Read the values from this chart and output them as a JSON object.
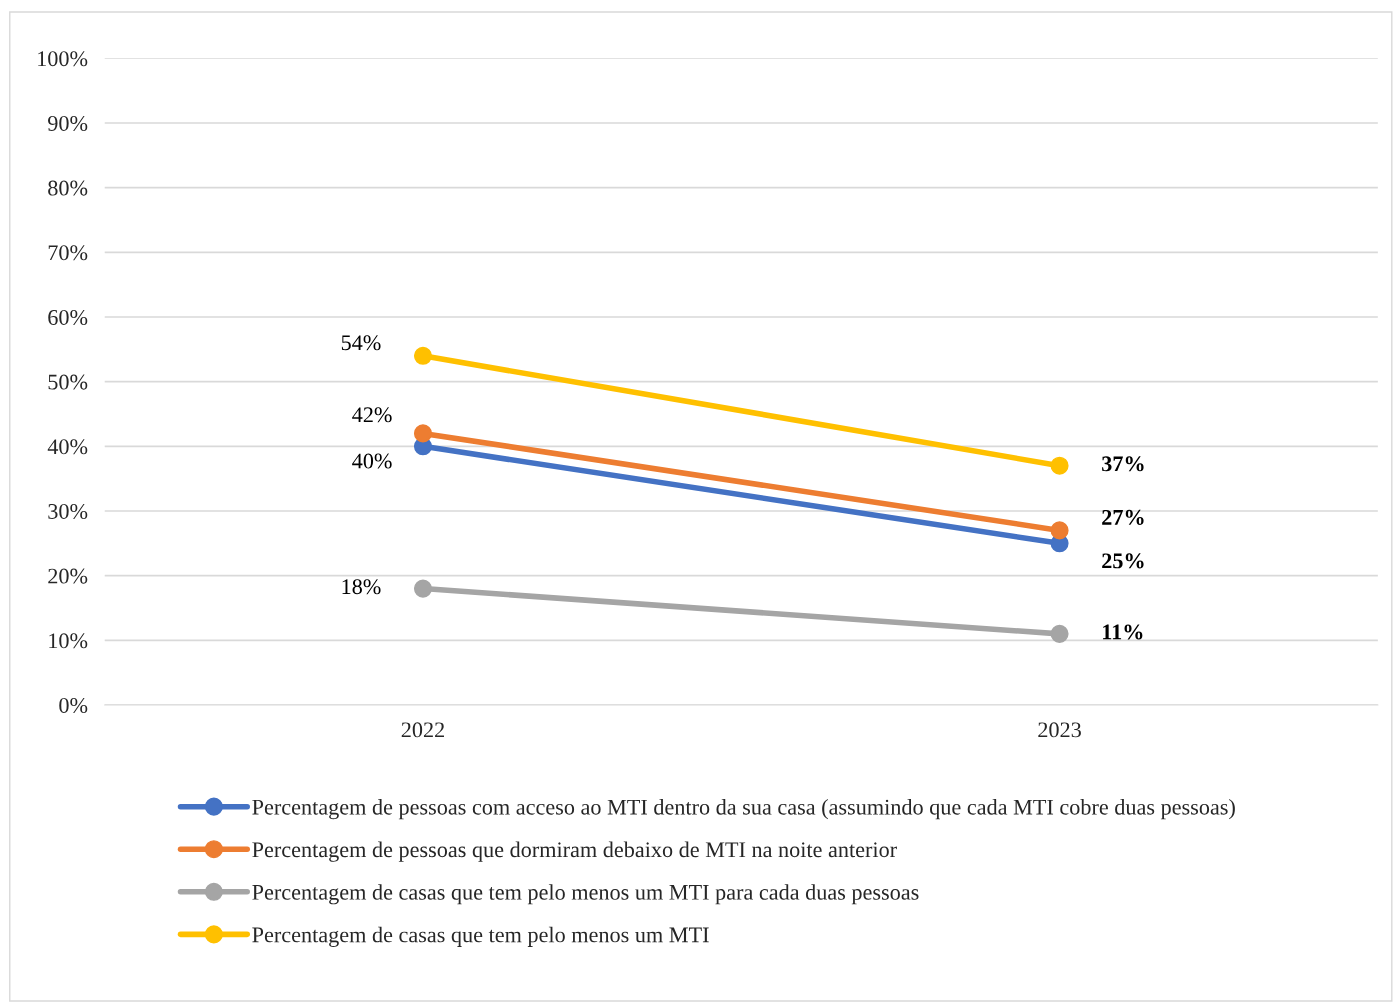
{
  "chart_data": {
    "type": "line",
    "categories": [
      "2022",
      "2023"
    ],
    "series": [
      {
        "name": "Percentagem de pessoas com acceso ao MTI dentro da sua casa (assumindo que cada MTI cobre duas pessoas)",
        "color": "#4472c4",
        "values": [
          40,
          25
        ],
        "value_labels": [
          "40%",
          "25%"
        ]
      },
      {
        "name": "Percentagem de pessoas que dormiram debaixo de MTI na noite anterior",
        "color": "#ed7d31",
        "values": [
          42,
          27
        ],
        "value_labels": [
          "42%",
          "27%"
        ]
      },
      {
        "name": "Percentagem de casas que tem pelo menos um MTI para cada duas pessoas",
        "color": "#a5a5a5",
        "values": [
          18,
          11
        ],
        "value_labels": [
          "18%",
          "11%"
        ]
      },
      {
        "name": "Percentagem de casas que tem pelo menos um MTI",
        "color": "#ffc000",
        "values": [
          54,
          37
        ],
        "value_labels": [
          "54%",
          "37%"
        ]
      }
    ],
    "ylim": [
      0,
      100
    ],
    "yticks": [
      {
        "value": 0,
        "label": "0%"
      },
      {
        "value": 10,
        "label": "10%"
      },
      {
        "value": 20,
        "label": "20%"
      },
      {
        "value": 30,
        "label": "30%"
      },
      {
        "value": 40,
        "label": "40%"
      },
      {
        "value": 50,
        "label": "50%"
      },
      {
        "value": 60,
        "label": "60%"
      },
      {
        "value": 70,
        "label": "70%"
      },
      {
        "value": 80,
        "label": "80%"
      },
      {
        "value": 90,
        "label": "90%"
      },
      {
        "value": 100,
        "label": "100%"
      }
    ],
    "grid": "y",
    "legend": "bottom",
    "marker": "circle",
    "line_style": "solid"
  }
}
